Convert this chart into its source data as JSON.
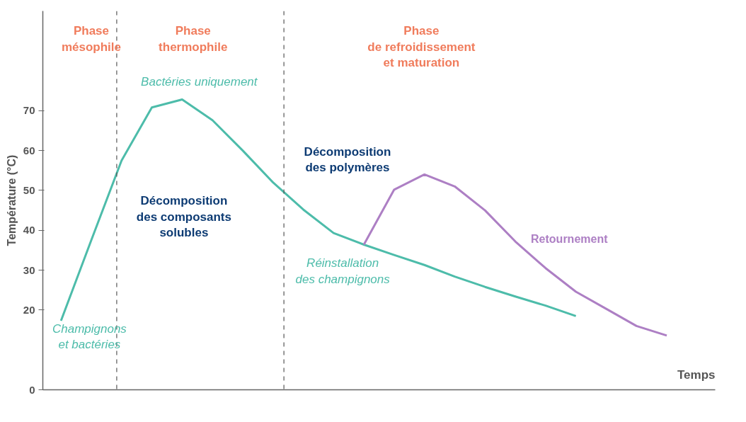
{
  "chart_data": {
    "type": "line",
    "xlabel": "Temps",
    "ylabel": "Température (°C)",
    "categories": [
      null,
      null,
      null,
      null,
      null,
      null,
      null,
      null,
      null,
      null,
      null,
      null,
      null,
      null,
      null,
      null,
      null,
      null,
      null,
      null,
      null
    ],
    "ylim": [
      0,
      95
    ],
    "yticks": [
      0,
      20,
      30,
      40,
      50,
      60,
      70
    ],
    "grid": false,
    "legend": false,
    "line_style": "solid",
    "marker": "none",
    "series": [
      {
        "color": "#4dbcaa",
        "values": [
          17.3,
          37.5,
          57.5,
          70.8,
          72.8,
          67.6,
          60.0,
          52.0,
          45.2,
          39.3,
          36.4,
          33.8,
          31.3,
          28.4,
          25.8,
          23.4,
          21.1,
          18.5,
          null,
          null,
          null
        ]
      },
      {
        "name": "Retournement",
        "color": "#ad7fc4",
        "values": [
          null,
          null,
          null,
          null,
          null,
          null,
          null,
          null,
          null,
          null,
          36.4,
          50.2,
          54.0,
          51.0,
          45.0,
          37.2,
          30.5,
          24.6,
          20.3,
          16.0,
          13.6
        ]
      }
    ],
    "annotations": [
      "Phase\nmésophile",
      "Phase\nthermophile",
      "Phase\nde refroidissement\net maturation",
      "Bactéries uniquement",
      "Décomposition\ndes composants\nsolubles",
      "Décomposition\ndes polymères",
      "Champignons\net bactéries",
      "Réinstallation\ndes champignons"
    ]
  }
}
